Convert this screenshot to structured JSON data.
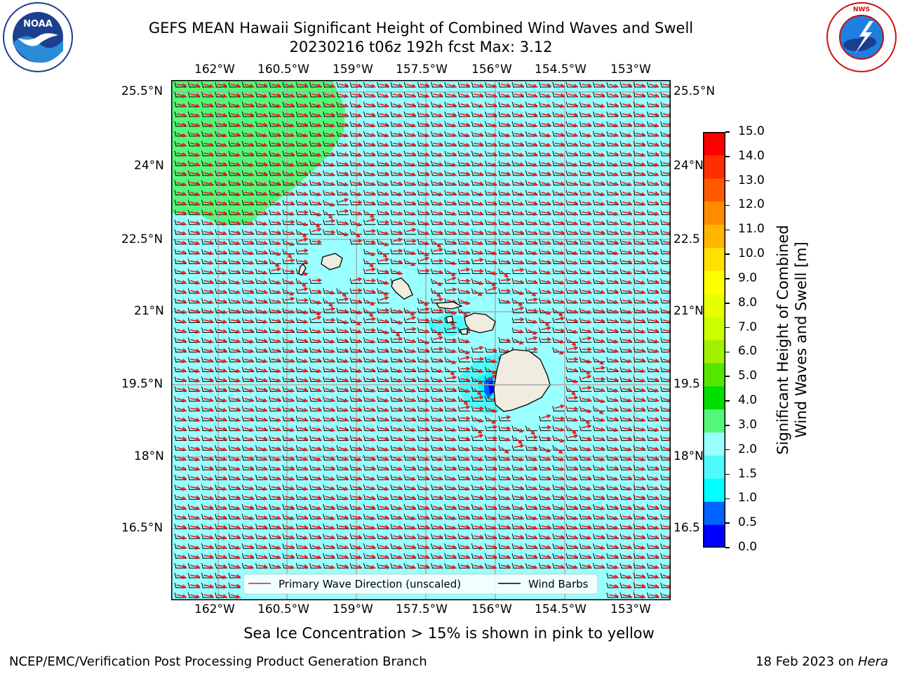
{
  "header": {
    "title_line1": "GEFS MEAN Hawaii Significant Height of Combined Wind Waves and Swell",
    "title_line2": "20230216 t06z 192h fcst   Max: 3.12"
  },
  "logos": {
    "left_text": "NOAA",
    "left_ring_text": "NATIONAL OCEANIC AND ATMOSPHERIC ADMINISTRATION · U.S. DEPARTMENT OF COMMERCE",
    "right_ring_text": "NATIONAL WEATHER SERVICE"
  },
  "map": {
    "lon_labels": [
      "162°W",
      "160.5°W",
      "159°W",
      "157.5°W",
      "156°W",
      "154.5°W",
      "153°W"
    ],
    "lat_labels_left": [
      "25.5°N",
      "24°N",
      "22.5°N",
      "21°N",
      "19.5°N",
      "18°N",
      "16.5°N"
    ],
    "lat_labels_right": [
      "25.5°N",
      "24°N",
      "22.5",
      "21°N",
      "19.5",
      "18°N",
      "16.5"
    ],
    "ocean_color": "#99ffff",
    "band_3_4_color": "#55f77b",
    "coast_fill": "#f0ece0",
    "arrow_color": "#e41a1c",
    "barb_color": "#000000"
  },
  "legend": {
    "wave_label": "Primary Wave Direction (unscaled)",
    "barb_label": "Wind Barbs"
  },
  "colorbar": {
    "label_line1": "Significant Height of Combined",
    "label_line2": "Wind Waves and Swell [m]",
    "ticks": [
      "0.0",
      "0.5",
      "1.0",
      "1.5",
      "2.0",
      "3.0",
      "4.0",
      "5.0",
      "6.0",
      "7.0",
      "8.0",
      "9.0",
      "10.0",
      "11.0",
      "12.0",
      "13.0",
      "14.0",
      "15.0"
    ],
    "colors": [
      "#0000ff",
      "#0062ff",
      "#00ffff",
      "#50fafa",
      "#99ffff",
      "#55f77b",
      "#00dd00",
      "#55e600",
      "#a0f000",
      "#ccff00",
      "#e8ff00",
      "#ffff00",
      "#ffe000",
      "#ffb500",
      "#ff8c00",
      "#ff5a00",
      "#ff2e00",
      "#ff0000"
    ]
  },
  "footer": {
    "sea_ice_note": "Sea Ice Concentration > 15% is shown in pink to yellow",
    "left": "NCEP/EMC/Verification Post Processing Product Generation Branch",
    "right_prefix": "18 Feb 2023 on ",
    "right_machine": "Hera"
  }
}
